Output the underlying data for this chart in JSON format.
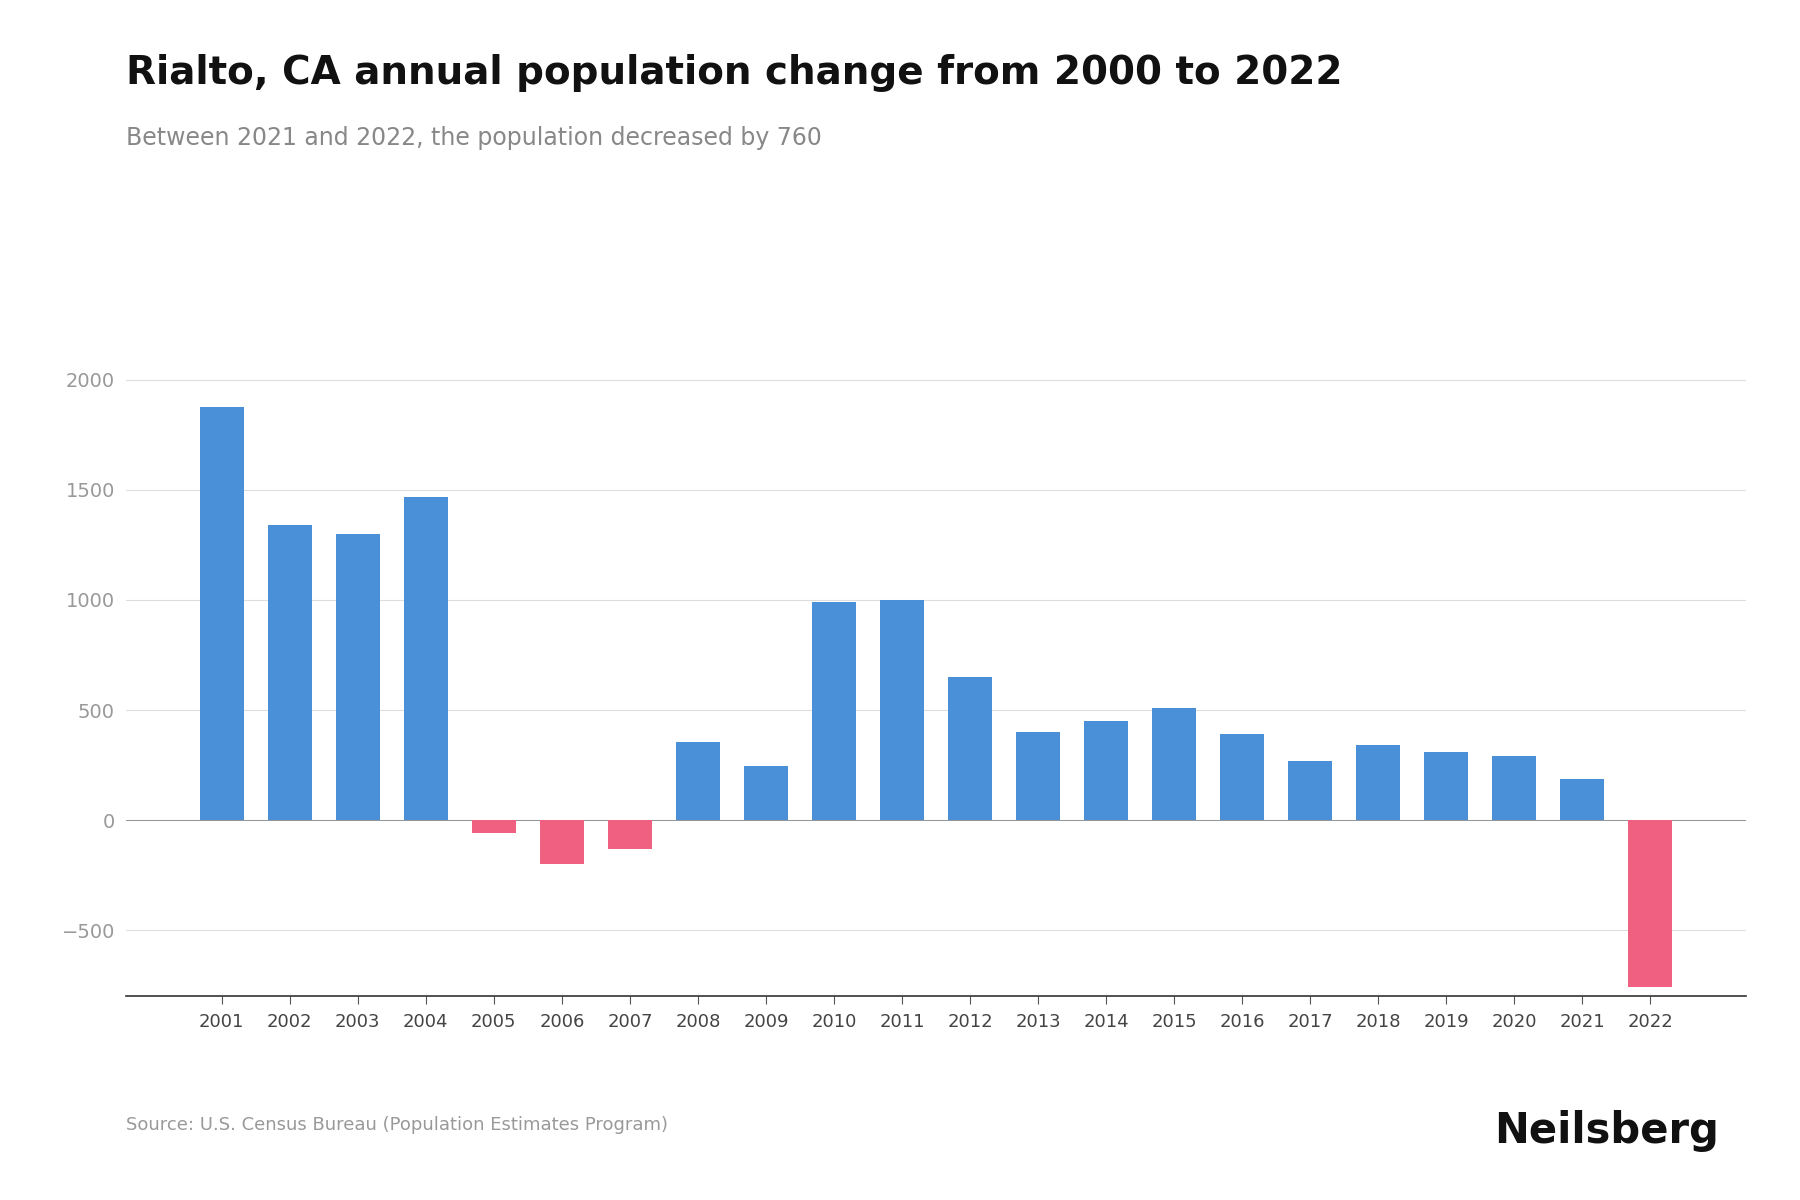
{
  "title": "Rialto, CA annual population change from 2000 to 2022",
  "subtitle": "Between 2021 and 2022, the population decreased by 760",
  "source": "Source: U.S. Census Bureau (Population Estimates Program)",
  "branding": "Neilsberg",
  "years": [
    2001,
    2002,
    2003,
    2004,
    2005,
    2006,
    2007,
    2008,
    2009,
    2010,
    2011,
    2012,
    2013,
    2014,
    2015,
    2016,
    2017,
    2018,
    2019,
    2020,
    2021,
    2022
  ],
  "values": [
    1878,
    1340,
    1300,
    1468,
    -60,
    -200,
    -130,
    355,
    245,
    990,
    1000,
    650,
    400,
    450,
    510,
    390,
    270,
    340,
    310,
    290,
    185,
    -760
  ],
  "bar_colors": [
    "#4a90d9",
    "#4a90d9",
    "#4a90d9",
    "#4a90d9",
    "#f06080",
    "#f06080",
    "#f06080",
    "#4a90d9",
    "#4a90d9",
    "#4a90d9",
    "#4a90d9",
    "#4a90d9",
    "#4a90d9",
    "#4a90d9",
    "#4a90d9",
    "#4a90d9",
    "#4a90d9",
    "#4a90d9",
    "#4a90d9",
    "#4a90d9",
    "#4a90d9",
    "#f06080"
  ],
  "ylim": [
    -800,
    2200
  ],
  "yticks": [
    -500,
    0,
    500,
    1000,
    1500,
    2000
  ],
  "background_color": "#ffffff",
  "title_fontsize": 28,
  "subtitle_fontsize": 17,
  "source_fontsize": 13,
  "branding_fontsize": 30,
  "grid_color": "#dddddd",
  "axis_label_color": "#999999",
  "title_color": "#111111",
  "subtitle_color": "#888888"
}
